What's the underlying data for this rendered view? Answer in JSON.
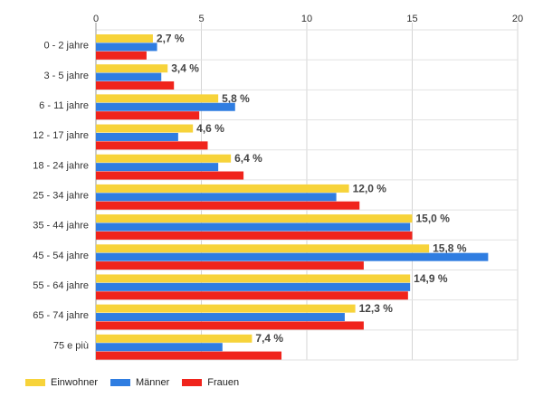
{
  "chart_data": {
    "type": "bar",
    "orientation": "horizontal",
    "categories": [
      "0 - 2 jahre",
      "3 - 5 jahre",
      "6 - 11 jahre",
      "12 - 17 jahre",
      "18 - 24 jahre",
      "25 - 34 jahre",
      "35 - 44 jahre",
      "45 - 54 jahre",
      "55 - 64 jahre",
      "65 - 74 jahre",
      "75 e più"
    ],
    "series": [
      {
        "name": "Einwohner",
        "color": "#f7d33a",
        "values": [
          2.7,
          3.4,
          5.8,
          4.6,
          6.4,
          12.0,
          15.0,
          15.8,
          14.9,
          12.3,
          7.4
        ],
        "labels": [
          "2,7 %",
          "3,4 %",
          "5,8 %",
          "4,6 %",
          "6,4 %",
          "12,0 %",
          "15,0 %",
          "15,8 %",
          "14,9 %",
          "12,3 %",
          "7,4 %"
        ]
      },
      {
        "name": "Männer",
        "color": "#2f7de1",
        "values": [
          2.9,
          3.1,
          6.6,
          3.9,
          5.8,
          11.4,
          14.9,
          18.6,
          14.9,
          11.8,
          6.0
        ]
      },
      {
        "name": "Frauen",
        "color": "#f0241c",
        "values": [
          2.4,
          3.7,
          4.9,
          5.3,
          7.0,
          12.5,
          15.0,
          12.7,
          14.8,
          12.7,
          8.8
        ]
      }
    ],
    "xlim": [
      0,
      20
    ],
    "xticks": [
      0,
      5,
      10,
      15,
      20
    ],
    "grid": true,
    "legend": "bottom-left"
  }
}
